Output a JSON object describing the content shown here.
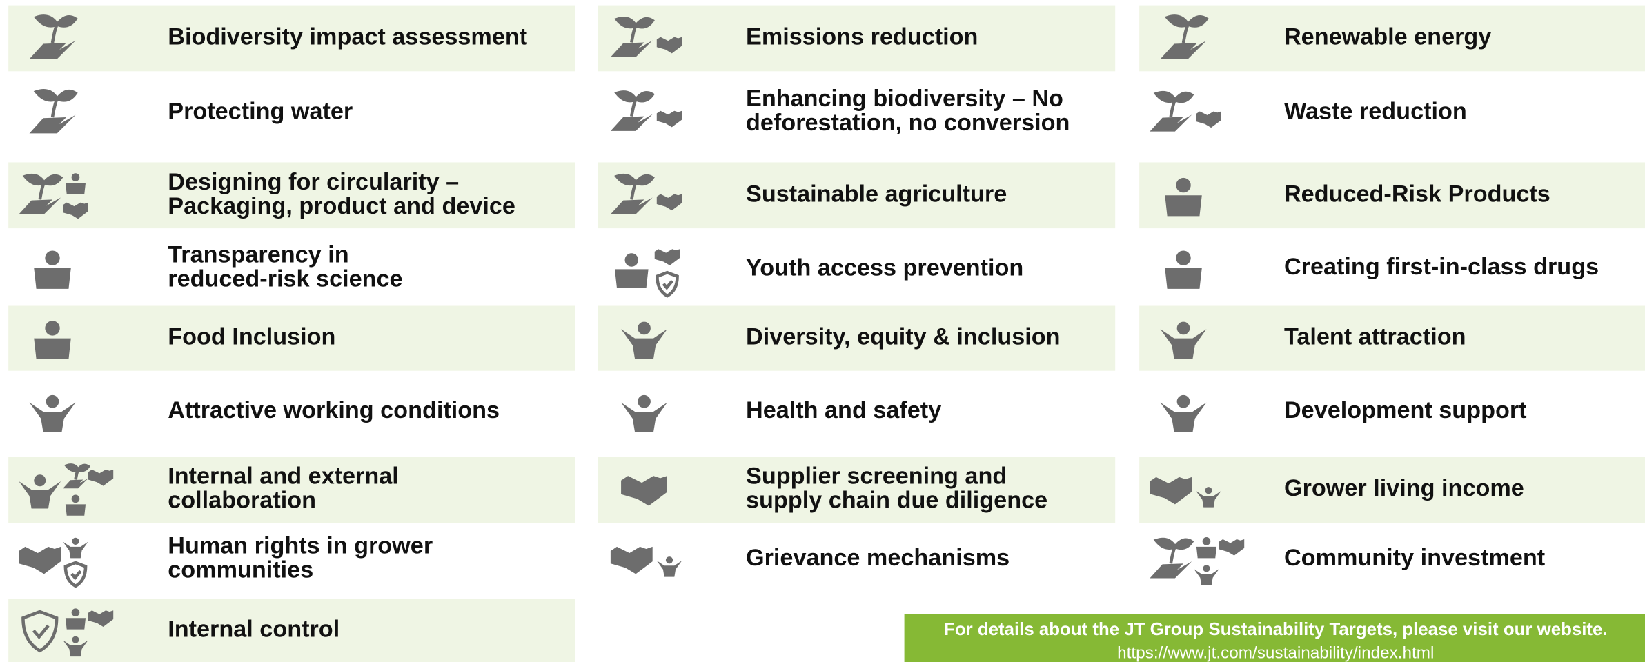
{
  "columns": [
    {
      "items": [
        {
          "label": [
            "Biodiversity impact assessment"
          ]
        },
        {
          "label": [
            "Protecting water"
          ]
        },
        {
          "label": [
            "Designing for circularity –",
            "Packaging, product and device"
          ]
        },
        {
          "label": [
            "Transparency in",
            "reduced-risk science"
          ]
        },
        {
          "label": [
            "Food Inclusion"
          ]
        },
        {
          "label": [
            "Attractive working conditions"
          ]
        },
        {
          "label": [
            "Internal and external",
            "collaboration"
          ]
        },
        {
          "label": [
            "Human rights in grower",
            "communities"
          ]
        },
        {
          "label": [
            "Internal control"
          ]
        }
      ]
    },
    {
      "items": [
        {
          "label": [
            "Emissions reduction"
          ]
        },
        {
          "label": [
            "Enhancing biodiversity – No",
            "deforestation, no conversion"
          ]
        },
        {
          "label": [
            "Sustainable agriculture"
          ]
        },
        {
          "label": [
            "Youth access prevention"
          ]
        },
        {
          "label": [
            "Diversity, equity & inclusion"
          ]
        },
        {
          "label": [
            "Health and safety"
          ]
        },
        {
          "label": [
            "Supplier screening and",
            "supply chain due diligence"
          ]
        },
        {
          "label": [
            "Grievance mechanisms"
          ]
        }
      ]
    },
    {
      "items": [
        {
          "label": [
            "Renewable energy"
          ]
        },
        {
          "label": [
            "Waste reduction"
          ]
        },
        {
          "label": [
            "Reduced-Risk Products"
          ]
        },
        {
          "label": [
            "Creating first-in-class drugs"
          ]
        },
        {
          "label": [
            "Talent attraction"
          ]
        },
        {
          "label": [
            "Development support"
          ]
        },
        {
          "label": [
            "Grower living income"
          ]
        },
        {
          "label": [
            "Community investment"
          ]
        }
      ]
    }
  ],
  "banner": {
    "text": "For details about the JT Group Sustainability Targets, please visit our website.",
    "url": "https://www.jt.com/sustainability/index.html"
  }
}
